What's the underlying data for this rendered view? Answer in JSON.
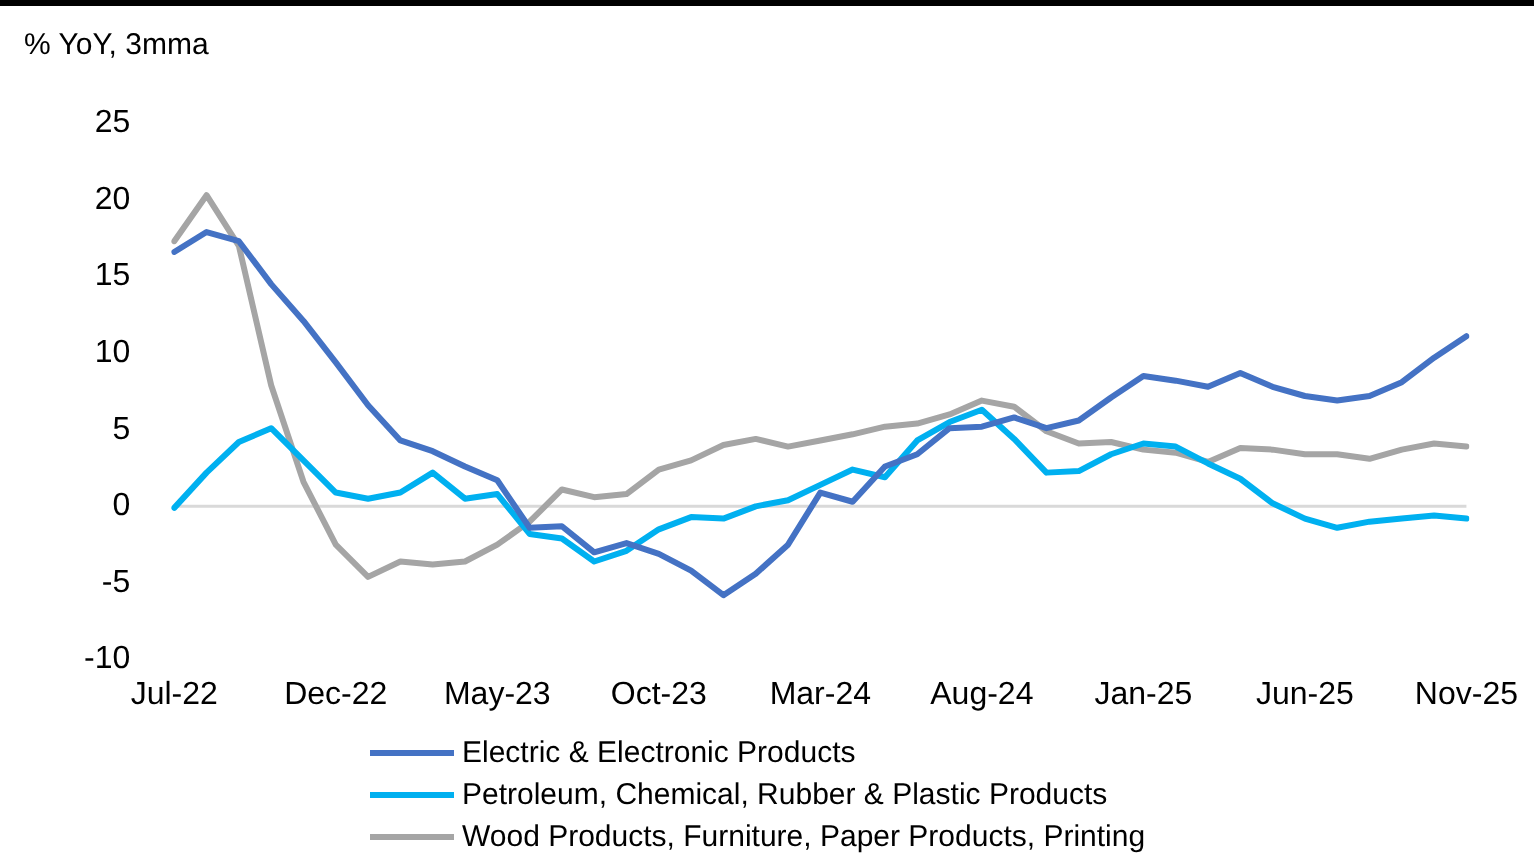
{
  "chart_data": {
    "type": "line",
    "ylabel": "% YoY, 3mma",
    "categories": [
      "Jul-22",
      null,
      null,
      null,
      null,
      "Dec-22",
      null,
      null,
      null,
      null,
      "May-23",
      null,
      null,
      null,
      null,
      "Oct-23",
      null,
      null,
      null,
      null,
      "Mar-24",
      null,
      null,
      null,
      null,
      "Aug-24",
      null,
      null,
      null,
      null,
      "Jan-25",
      null,
      null,
      null,
      null,
      "Jun-25",
      null,
      null,
      null,
      null,
      "Nov-25"
    ],
    "series": [
      {
        "name": "Electric & Electronic Products",
        "color": "#4472c4",
        "values": [
          16.6,
          17.9,
          17.3,
          14.5,
          12.1,
          9.4,
          6.6,
          4.3,
          3.6,
          2.6,
          1.7,
          -1.4,
          -1.3,
          -3.0,
          -2.4,
          -3.1,
          -4.2,
          -5.8,
          -4.4,
          -2.5,
          0.9,
          0.3,
          2.6,
          3.4,
          5.1,
          5.2,
          5.8,
          5.1,
          5.6,
          7.1,
          8.5,
          8.2,
          7.8,
          8.7,
          7.8,
          7.2,
          6.9,
          7.2,
          8.1,
          9.7,
          11.1
        ]
      },
      {
        "name": "Petroleum, Chemical, Rubber & Plastic Products",
        "color": "#00b0f0",
        "values": [
          -0.1,
          2.2,
          4.2,
          5.1,
          3.0,
          0.9,
          0.5,
          0.9,
          2.2,
          0.5,
          0.8,
          -1.8,
          -2.1,
          -3.6,
          -2.9,
          -1.5,
          -0.7,
          -0.8,
          0.0,
          0.4,
          1.4,
          2.4,
          1.9,
          4.3,
          5.5,
          6.3,
          4.4,
          2.2,
          2.3,
          3.4,
          4.1,
          3.9,
          2.8,
          1.8,
          0.2,
          -0.8,
          -1.4,
          -1.0,
          -0.8,
          -0.6,
          -0.8
        ]
      },
      {
        "name": "Wood Products, Furniture, Paper Products, Printing",
        "color": "#a5a5a5",
        "values": [
          17.3,
          20.3,
          17.0,
          7.9,
          1.6,
          -2.5,
          -4.6,
          -3.6,
          -3.8,
          -3.6,
          -2.5,
          -1.0,
          1.1,
          0.6,
          0.8,
          2.4,
          3.0,
          4.0,
          4.4,
          3.9,
          4.3,
          4.7,
          5.2,
          5.4,
          6.0,
          6.9,
          6.5,
          4.9,
          4.1,
          4.2,
          3.7,
          3.5,
          2.9,
          3.8,
          3.7,
          3.4,
          3.4,
          3.1,
          3.7,
          4.1,
          3.9
        ]
      }
    ],
    "ylim": [
      -10,
      25
    ],
    "yticks": [
      -10,
      -5,
      0,
      5,
      10,
      15,
      20,
      25
    ],
    "ref_lines": [
      {
        "axis": "y",
        "value": 0,
        "color": "#d9d9d9"
      }
    ],
    "grid": false,
    "legend": "bottom",
    "marker": "none",
    "line_style": "solid"
  }
}
